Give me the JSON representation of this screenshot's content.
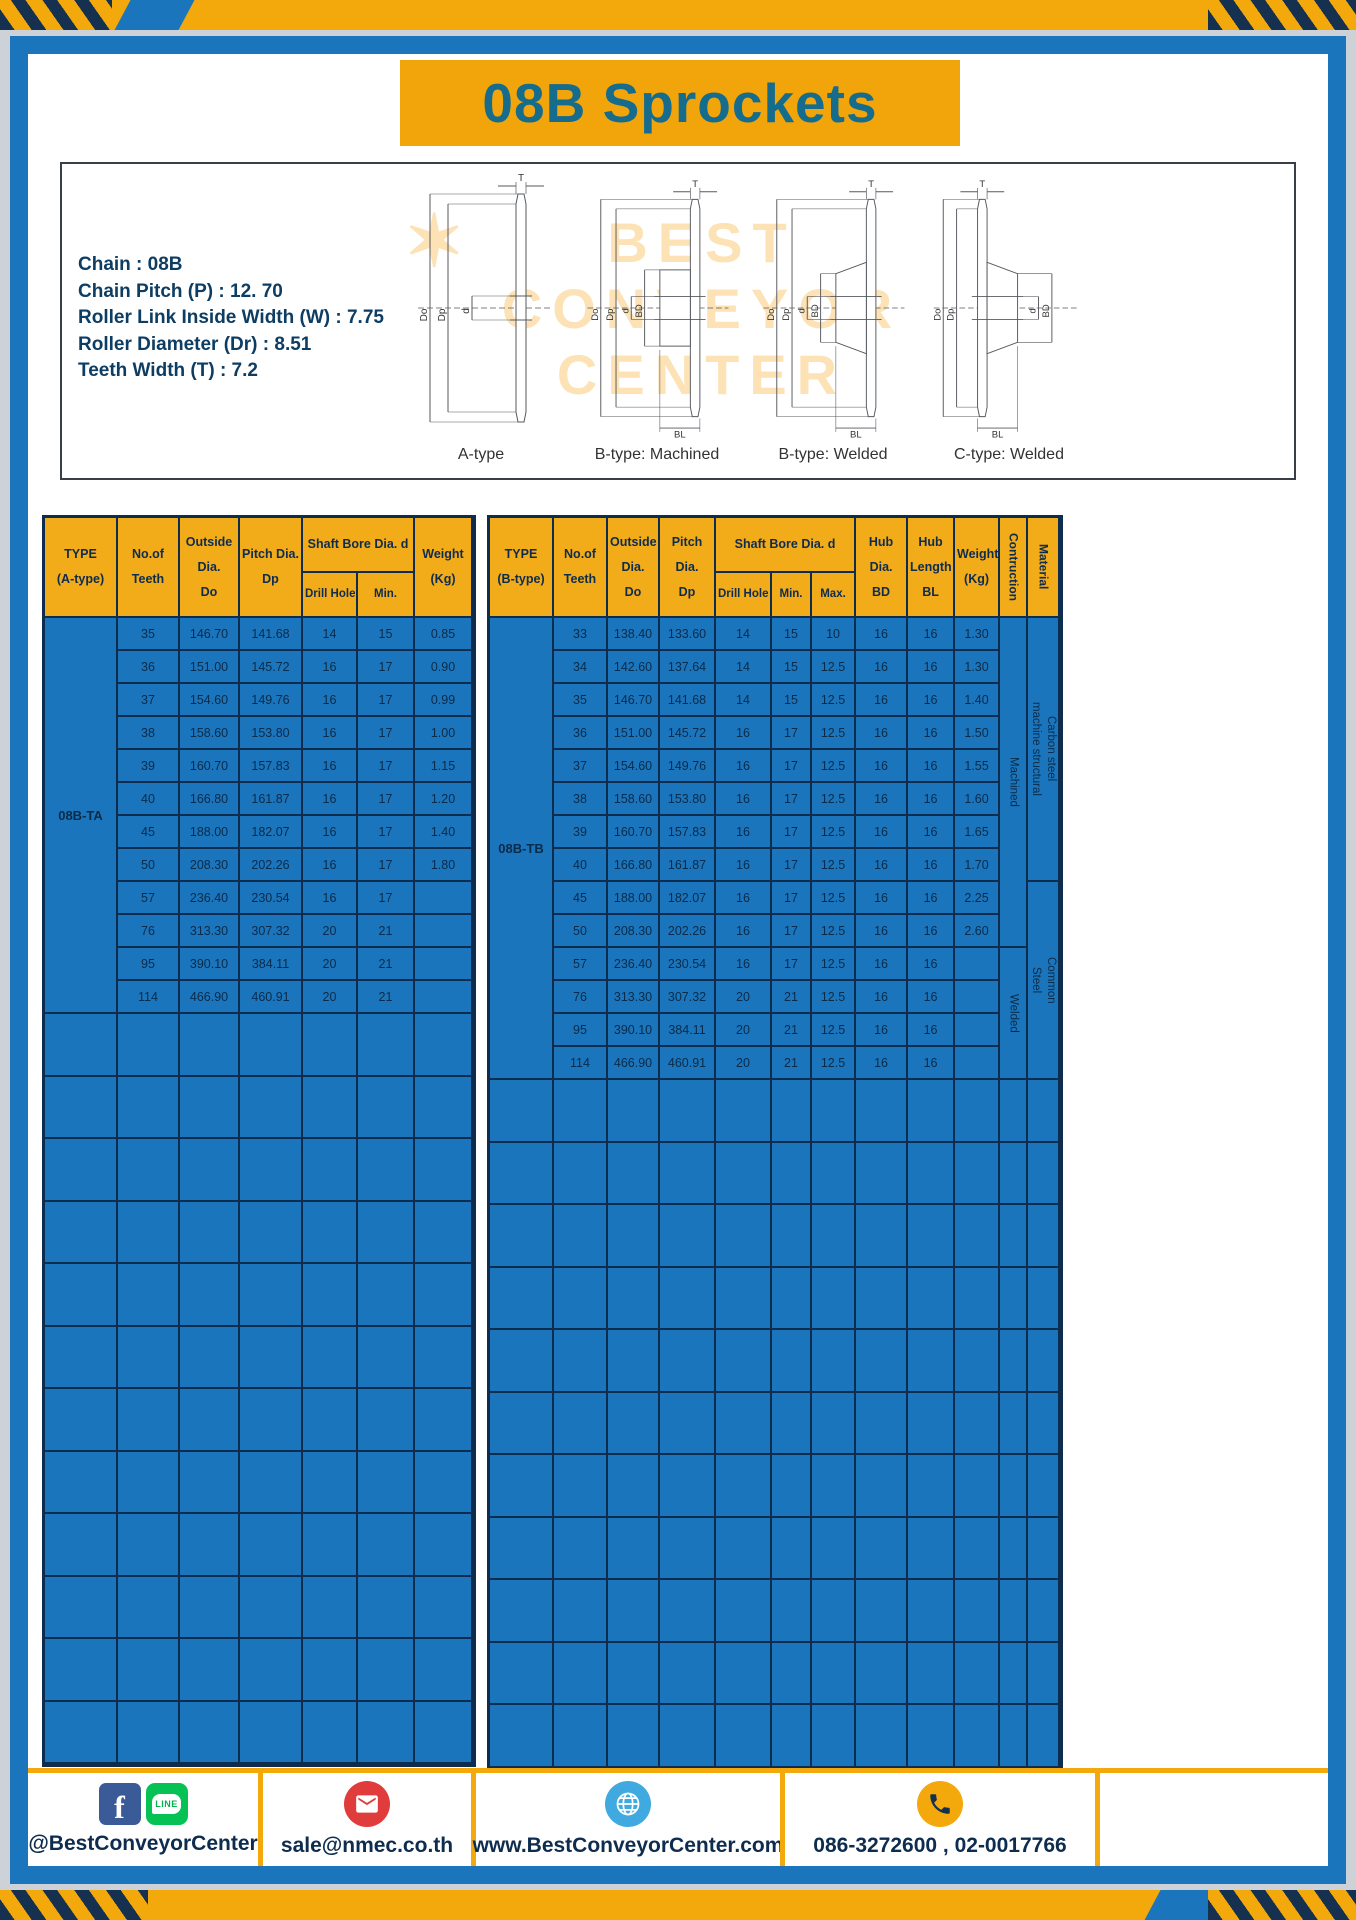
{
  "title": "08B Sprockets",
  "specs": [
    "Chain : 08B",
    "Chain Pitch (P) : 12. 70",
    "Roller Link Inside Width (W) : 7.75",
    "Roller Diameter (Dr) : 8.51",
    "Teeth Width (T) : 7.2"
  ],
  "diagram": {
    "captions": [
      "A-type",
      "B-type: Machined",
      "B-type: Welded",
      "C-type: Welded"
    ],
    "dims": {
      "t": "T",
      "do": "Do",
      "dp": "Dp",
      "d": "d",
      "bd": "BD",
      "bl": "BL"
    },
    "watermark": [
      "BEST",
      "CONVEYOR",
      "CENTER"
    ],
    "watermark_star": "✶"
  },
  "table_a": {
    "type_label": "08B-TA",
    "headers": {
      "type": "TYPE\n(A-type)",
      "teeth": "No.of\nTeeth",
      "outside": "Outside\nDia.\nDo",
      "pitch": "Pitch Dia.\nDp",
      "shaft": "Shaft Bore Dia. d",
      "drill": "Drill Hole",
      "min": "Min.",
      "weight": "Weight\n(Kg)"
    },
    "rows": [
      [
        "35",
        "146.70",
        "141.68",
        "14",
        "15",
        "0.85"
      ],
      [
        "36",
        "151.00",
        "145.72",
        "16",
        "17",
        "0.90"
      ],
      [
        "37",
        "154.60",
        "149.76",
        "16",
        "17",
        "0.99"
      ],
      [
        "38",
        "158.60",
        "153.80",
        "16",
        "17",
        "1.00"
      ],
      [
        "39",
        "160.70",
        "157.83",
        "16",
        "17",
        "1.15"
      ],
      [
        "40",
        "166.80",
        "161.87",
        "16",
        "17",
        "1.20"
      ],
      [
        "45",
        "188.00",
        "182.07",
        "16",
        "17",
        "1.40"
      ],
      [
        "50",
        "208.30",
        "202.26",
        "16",
        "17",
        "1.80"
      ],
      [
        "57",
        "236.40",
        "230.54",
        "16",
        "17",
        ""
      ],
      [
        "76",
        "313.30",
        "307.32",
        "20",
        "21",
        ""
      ],
      [
        "95",
        "390.10",
        "384.11",
        "20",
        "21",
        ""
      ],
      [
        "114",
        "466.90",
        "460.91",
        "20",
        "21",
        ""
      ]
    ],
    "empty_rows": 12,
    "empty_cols": 7
  },
  "table_b": {
    "type_label": "08B-TB",
    "headers": {
      "type": "TYPE\n(B-type)",
      "teeth": "No.of\nTeeth",
      "outside": "Outside\nDia.\nDo",
      "pitch": "Pitch Dia.\nDp",
      "shaft": "Shaft Bore Dia. d",
      "drill": "Drill Hole",
      "min": "Min.",
      "max": "Max.",
      "hub_dia": "Hub Dia.\nBD",
      "hub_len": "Hub\nLength\nBL",
      "weight": "Weight\n(Kg)",
      "construction": "Contruction",
      "material": "Material"
    },
    "rows": [
      [
        "33",
        "138.40",
        "133.60",
        "14",
        "15",
        "10",
        "16",
        "16",
        "1.30"
      ],
      [
        "34",
        "142.60",
        "137.64",
        "14",
        "15",
        "12.5",
        "16",
        "16",
        "1.30"
      ],
      [
        "35",
        "146.70",
        "141.68",
        "14",
        "15",
        "12.5",
        "16",
        "16",
        "1.40"
      ],
      [
        "36",
        "151.00",
        "145.72",
        "16",
        "17",
        "12.5",
        "16",
        "16",
        "1.50"
      ],
      [
        "37",
        "154.60",
        "149.76",
        "16",
        "17",
        "12.5",
        "16",
        "16",
        "1.55"
      ],
      [
        "38",
        "158.60",
        "153.80",
        "16",
        "17",
        "12.5",
        "16",
        "16",
        "1.60"
      ],
      [
        "39",
        "160.70",
        "157.83",
        "16",
        "17",
        "12.5",
        "16",
        "16",
        "1.65"
      ],
      [
        "40",
        "166.80",
        "161.87",
        "16",
        "17",
        "12.5",
        "16",
        "16",
        "1.70"
      ],
      [
        "45",
        "188.00",
        "182.07",
        "16",
        "17",
        "12.5",
        "16",
        "16",
        "2.25"
      ],
      [
        "50",
        "208.30",
        "202.26",
        "16",
        "17",
        "12.5",
        "16",
        "16",
        "2.60"
      ],
      [
        "57",
        "236.40",
        "230.54",
        "16",
        "17",
        "12.5",
        "16",
        "16",
        ""
      ],
      [
        "76",
        "313.30",
        "307.32",
        "20",
        "21",
        "12.5",
        "16",
        "16",
        ""
      ],
      [
        "95",
        "390.10",
        "384.11",
        "20",
        "21",
        "12.5",
        "16",
        "16",
        ""
      ],
      [
        "114",
        "466.90",
        "460.91",
        "20",
        "21",
        "12.5",
        "16",
        "16",
        ""
      ]
    ],
    "construction": [
      {
        "label": "Machined",
        "rows": 10
      },
      {
        "label": "Welded",
        "rows": 4
      }
    ],
    "material": [
      {
        "label": "Carbon steel\nmachine structural",
        "rows": 8
      },
      {
        "label": "Common\nSteel",
        "rows": 6
      }
    ],
    "empty_rows": 11,
    "empty_cols": 12
  },
  "footer": {
    "items": [
      {
        "label": "@BestConveyorCenter"
      },
      {
        "label": "sale@nmec.co.th"
      },
      {
        "label": "www.BestConveyorCenter.com"
      },
      {
        "label": "086-3272600 , 02-0017766"
      }
    ],
    "icons": {
      "facebook": "f",
      "line": "LINE"
    }
  },
  "colors": {
    "yellow": "#F3A90C",
    "blue": "#1B75BC",
    "navy": "#0D2C4E",
    "header_yellow": "#F2AB19",
    "title_teal": "#156C8C"
  }
}
